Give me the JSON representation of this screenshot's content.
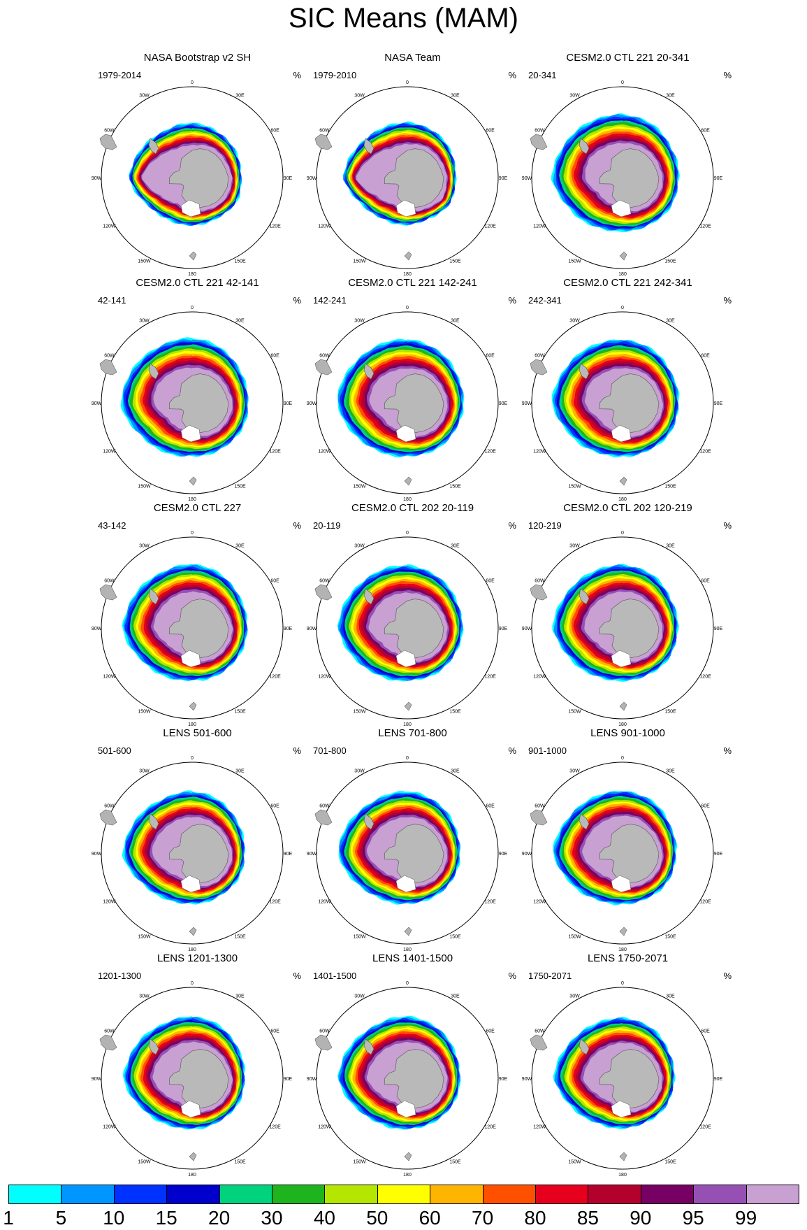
{
  "title": "SIC Means (MAM)",
  "chart_data": {
    "type": "polar-stereographic contour map",
    "variable": "Sea ice concentration (SIC)",
    "season": "MAM",
    "hemisphere": "Southern",
    "units": "%",
    "longitude_labels": [
      "0",
      "30E",
      "60E",
      "90E",
      "120E",
      "150E",
      "180",
      "150W",
      "120W",
      "90W",
      "60W",
      "30W"
    ],
    "colorbar": {
      "levels": [
        "1",
        "5",
        "10",
        "15",
        "20",
        "30",
        "40",
        "50",
        "60",
        "70",
        "80",
        "85",
        "90",
        "95",
        "99"
      ],
      "colors": [
        "#00ffff",
        "#0096ff",
        "#0032ff",
        "#0000cd",
        "#00d27d",
        "#1eb41e",
        "#b4e600",
        "#ffff00",
        "#ffb400",
        "#ff5000",
        "#e6001e",
        "#b4002d",
        "#780064",
        "#9650b4",
        "#c8a0d2"
      ]
    },
    "panels": [
      {
        "title": "NASA Bootstrap v2 SH",
        "period": "1979-2014",
        "unit": "%",
        "r": [
          0.6,
          0.58,
          0.56,
          0.54,
          0.56,
          0.52,
          0.53,
          0.53,
          0.58,
          0.7,
          0.64,
          0.6
        ],
        "b": [
          0.12,
          0.1,
          0.14,
          0.06,
          0.06,
          0.07,
          0.08,
          0.1,
          0.09,
          0.07,
          0.1,
          0.12
        ]
      },
      {
        "title": "NASA Team",
        "period": "1979-2010",
        "unit": "%",
        "r": [
          0.61,
          0.59,
          0.56,
          0.53,
          0.55,
          0.51,
          0.52,
          0.53,
          0.58,
          0.71,
          0.65,
          0.61
        ],
        "b": [
          0.12,
          0.1,
          0.14,
          0.05,
          0.05,
          0.06,
          0.08,
          0.1,
          0.09,
          0.07,
          0.1,
          0.12
        ]
      },
      {
        "title": "CESM2.0 CTL 221 20-341",
        "period": "20-341",
        "unit": "%",
        "r": [
          0.7,
          0.67,
          0.63,
          0.62,
          0.62,
          0.6,
          0.59,
          0.62,
          0.68,
          0.78,
          0.74,
          0.71
        ],
        "b": [
          0.16,
          0.14,
          0.12,
          0.1,
          0.11,
          0.12,
          0.14,
          0.15,
          0.18,
          0.18,
          0.16,
          0.16
        ]
      },
      {
        "title": "CESM2.0 CTL 221 42-141",
        "period": "42-141",
        "unit": "%",
        "r": [
          0.71,
          0.68,
          0.63,
          0.62,
          0.62,
          0.6,
          0.59,
          0.62,
          0.68,
          0.79,
          0.75,
          0.72
        ],
        "b": [
          0.16,
          0.14,
          0.12,
          0.1,
          0.11,
          0.12,
          0.14,
          0.15,
          0.18,
          0.18,
          0.16,
          0.16
        ]
      },
      {
        "title": "CESM2.0 CTL 221 142-241",
        "period": "142-241",
        "unit": "%",
        "r": [
          0.7,
          0.67,
          0.63,
          0.62,
          0.61,
          0.6,
          0.59,
          0.62,
          0.68,
          0.78,
          0.74,
          0.71
        ],
        "b": [
          0.16,
          0.14,
          0.12,
          0.1,
          0.11,
          0.12,
          0.14,
          0.15,
          0.18,
          0.18,
          0.16,
          0.16
        ]
      },
      {
        "title": "CESM2.0 CTL 221 242-341",
        "period": "242-341",
        "unit": "%",
        "r": [
          0.7,
          0.67,
          0.63,
          0.62,
          0.62,
          0.6,
          0.59,
          0.62,
          0.68,
          0.78,
          0.74,
          0.71
        ],
        "b": [
          0.16,
          0.14,
          0.12,
          0.1,
          0.11,
          0.12,
          0.14,
          0.15,
          0.18,
          0.18,
          0.16,
          0.16
        ]
      },
      {
        "title": "CESM2.0 CTL 227",
        "period": "43-142",
        "unit": "%",
        "r": [
          0.7,
          0.67,
          0.62,
          0.61,
          0.6,
          0.59,
          0.58,
          0.61,
          0.67,
          0.77,
          0.73,
          0.7
        ],
        "b": [
          0.15,
          0.13,
          0.12,
          0.1,
          0.11,
          0.12,
          0.14,
          0.15,
          0.17,
          0.17,
          0.16,
          0.15
        ]
      },
      {
        "title": "CESM2.0 CTL 202 20-119",
        "period": "20-119",
        "unit": "%",
        "r": [
          0.69,
          0.66,
          0.62,
          0.61,
          0.6,
          0.59,
          0.58,
          0.61,
          0.67,
          0.77,
          0.73,
          0.7
        ],
        "b": [
          0.15,
          0.13,
          0.12,
          0.1,
          0.11,
          0.12,
          0.14,
          0.15,
          0.17,
          0.17,
          0.16,
          0.15
        ]
      },
      {
        "title": "CESM2.0 CTL 202 120-219",
        "period": "120-219",
        "unit": "%",
        "r": [
          0.7,
          0.67,
          0.62,
          0.61,
          0.61,
          0.59,
          0.58,
          0.61,
          0.67,
          0.77,
          0.73,
          0.7
        ],
        "b": [
          0.15,
          0.13,
          0.12,
          0.1,
          0.11,
          0.12,
          0.14,
          0.15,
          0.17,
          0.17,
          0.16,
          0.15
        ]
      },
      {
        "title": "LENS 501-600",
        "period": "501-600",
        "unit": "%",
        "r": [
          0.68,
          0.65,
          0.6,
          0.58,
          0.58,
          0.56,
          0.56,
          0.58,
          0.65,
          0.77,
          0.72,
          0.68
        ],
        "b": [
          0.14,
          0.12,
          0.11,
          0.09,
          0.1,
          0.1,
          0.12,
          0.14,
          0.15,
          0.16,
          0.15,
          0.14
        ]
      },
      {
        "title": "LENS 701-800",
        "period": "701-800",
        "unit": "%",
        "r": [
          0.68,
          0.65,
          0.6,
          0.58,
          0.58,
          0.56,
          0.56,
          0.58,
          0.65,
          0.77,
          0.72,
          0.68
        ],
        "b": [
          0.14,
          0.12,
          0.11,
          0.09,
          0.1,
          0.1,
          0.12,
          0.14,
          0.15,
          0.16,
          0.15,
          0.14
        ]
      },
      {
        "title": "LENS 901-1000",
        "period": "901-1000",
        "unit": "%",
        "r": [
          0.69,
          0.66,
          0.61,
          0.59,
          0.59,
          0.57,
          0.56,
          0.59,
          0.66,
          0.77,
          0.72,
          0.69
        ],
        "b": [
          0.14,
          0.12,
          0.11,
          0.09,
          0.1,
          0.1,
          0.12,
          0.14,
          0.15,
          0.16,
          0.15,
          0.14
        ]
      },
      {
        "title": "LENS 1201-1300",
        "period": "1201-1300",
        "unit": "%",
        "r": [
          0.68,
          0.65,
          0.6,
          0.58,
          0.58,
          0.56,
          0.56,
          0.58,
          0.65,
          0.76,
          0.72,
          0.68
        ],
        "b": [
          0.14,
          0.12,
          0.11,
          0.09,
          0.1,
          0.1,
          0.12,
          0.14,
          0.15,
          0.16,
          0.15,
          0.14
        ]
      },
      {
        "title": "LENS 1401-1500",
        "period": "1401-1500",
        "unit": "%",
        "r": [
          0.68,
          0.65,
          0.6,
          0.58,
          0.58,
          0.56,
          0.56,
          0.58,
          0.65,
          0.77,
          0.72,
          0.68
        ],
        "b": [
          0.14,
          0.12,
          0.11,
          0.09,
          0.1,
          0.1,
          0.12,
          0.14,
          0.15,
          0.16,
          0.15,
          0.14
        ]
      },
      {
        "title": "LENS 1750-2071",
        "period": "1750-2071",
        "unit": "%",
        "r": [
          0.67,
          0.64,
          0.59,
          0.57,
          0.57,
          0.55,
          0.55,
          0.57,
          0.64,
          0.76,
          0.71,
          0.67
        ],
        "b": [
          0.14,
          0.12,
          0.11,
          0.09,
          0.1,
          0.1,
          0.12,
          0.14,
          0.15,
          0.16,
          0.15,
          0.14
        ]
      }
    ]
  }
}
